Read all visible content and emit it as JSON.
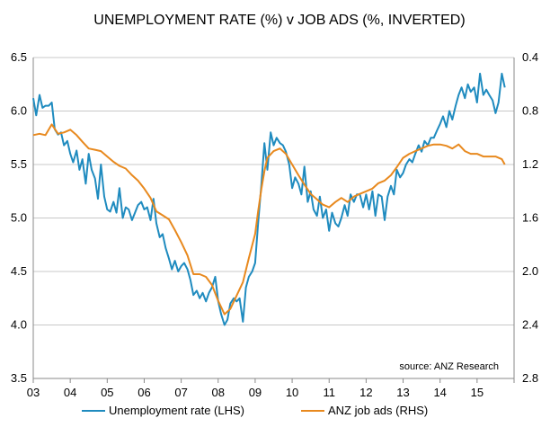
{
  "chart_data": {
    "type": "line",
    "title": "UNEMPLOYMENT RATE (%) v JOB ADS (%, INVERTED)",
    "source_note": "source: ANZ Research",
    "x_ticks": [
      "03",
      "04",
      "05",
      "06",
      "07",
      "08",
      "09",
      "10",
      "11",
      "12",
      "13",
      "14",
      "15"
    ],
    "x_range": [
      2003,
      2016
    ],
    "y_left": {
      "min": 3.5,
      "max": 6.5,
      "ticks": [
        "3.5",
        "4.0",
        "4.5",
        "5.0",
        "5.5",
        "6.0",
        "6.5"
      ]
    },
    "y_right": {
      "min": 0.4,
      "max": 2.8,
      "inverted": true,
      "ticks": [
        "0.4",
        "0.8",
        "1.2",
        "1.6",
        "2.0",
        "2.4",
        "2.8"
      ]
    },
    "grid": "horizontal",
    "legend_position": "bottom",
    "series": [
      {
        "name": "Unemployment rate (LHS)",
        "axis": "left",
        "color": "#1f8bbf",
        "points": [
          [
            2003.0,
            6.12
          ],
          [
            2003.08,
            5.96
          ],
          [
            2003.17,
            6.15
          ],
          [
            2003.25,
            6.03
          ],
          [
            2003.33,
            6.05
          ],
          [
            2003.42,
            6.05
          ],
          [
            2003.5,
            6.08
          ],
          [
            2003.58,
            5.83
          ],
          [
            2003.67,
            5.78
          ],
          [
            2003.75,
            5.8
          ],
          [
            2003.83,
            5.68
          ],
          [
            2003.92,
            5.72
          ],
          [
            2004.0,
            5.6
          ],
          [
            2004.08,
            5.52
          ],
          [
            2004.17,
            5.63
          ],
          [
            2004.25,
            5.45
          ],
          [
            2004.33,
            5.55
          ],
          [
            2004.42,
            5.32
          ],
          [
            2004.5,
            5.6
          ],
          [
            2004.58,
            5.45
          ],
          [
            2004.67,
            5.37
          ],
          [
            2004.75,
            5.18
          ],
          [
            2004.83,
            5.5
          ],
          [
            2004.92,
            5.2
          ],
          [
            2005.0,
            5.08
          ],
          [
            2005.08,
            5.06
          ],
          [
            2005.17,
            5.15
          ],
          [
            2005.25,
            5.05
          ],
          [
            2005.33,
            5.28
          ],
          [
            2005.42,
            5.0
          ],
          [
            2005.5,
            5.1
          ],
          [
            2005.58,
            5.08
          ],
          [
            2005.67,
            4.98
          ],
          [
            2005.75,
            5.05
          ],
          [
            2005.83,
            5.12
          ],
          [
            2005.92,
            5.15
          ],
          [
            2006.0,
            5.08
          ],
          [
            2006.08,
            5.1
          ],
          [
            2006.17,
            4.98
          ],
          [
            2006.25,
            5.18
          ],
          [
            2006.33,
            4.95
          ],
          [
            2006.42,
            4.82
          ],
          [
            2006.5,
            4.85
          ],
          [
            2006.58,
            4.72
          ],
          [
            2006.67,
            4.62
          ],
          [
            2006.75,
            4.52
          ],
          [
            2006.83,
            4.6
          ],
          [
            2006.92,
            4.5
          ],
          [
            2007.0,
            4.55
          ],
          [
            2007.08,
            4.58
          ],
          [
            2007.17,
            4.52
          ],
          [
            2007.25,
            4.42
          ],
          [
            2007.33,
            4.28
          ],
          [
            2007.42,
            4.32
          ],
          [
            2007.5,
            4.25
          ],
          [
            2007.58,
            4.3
          ],
          [
            2007.67,
            4.22
          ],
          [
            2007.75,
            4.3
          ],
          [
            2007.83,
            4.35
          ],
          [
            2007.92,
            4.45
          ],
          [
            2008.0,
            4.22
          ],
          [
            2008.08,
            4.1
          ],
          [
            2008.17,
            4.0
          ],
          [
            2008.25,
            4.05
          ],
          [
            2008.33,
            4.2
          ],
          [
            2008.42,
            4.25
          ],
          [
            2008.5,
            4.22
          ],
          [
            2008.58,
            4.25
          ],
          [
            2008.67,
            4.03
          ],
          [
            2008.75,
            4.35
          ],
          [
            2008.83,
            4.45
          ],
          [
            2008.92,
            4.5
          ],
          [
            2009.0,
            4.58
          ],
          [
            2009.08,
            4.95
          ],
          [
            2009.17,
            5.32
          ],
          [
            2009.25,
            5.7
          ],
          [
            2009.33,
            5.45
          ],
          [
            2009.42,
            5.8
          ],
          [
            2009.5,
            5.68
          ],
          [
            2009.58,
            5.75
          ],
          [
            2009.67,
            5.7
          ],
          [
            2009.75,
            5.68
          ],
          [
            2009.83,
            5.62
          ],
          [
            2009.92,
            5.5
          ],
          [
            2010.0,
            5.28
          ],
          [
            2010.08,
            5.38
          ],
          [
            2010.17,
            5.32
          ],
          [
            2010.25,
            5.22
          ],
          [
            2010.33,
            5.48
          ],
          [
            2010.42,
            5.15
          ],
          [
            2010.5,
            5.25
          ],
          [
            2010.58,
            5.08
          ],
          [
            2010.67,
            5.02
          ],
          [
            2010.75,
            5.2
          ],
          [
            2010.83,
            5.0
          ],
          [
            2010.92,
            5.08
          ],
          [
            2011.0,
            4.88
          ],
          [
            2011.08,
            5.05
          ],
          [
            2011.17,
            4.95
          ],
          [
            2011.25,
            4.92
          ],
          [
            2011.33,
            5.0
          ],
          [
            2011.42,
            5.12
          ],
          [
            2011.5,
            5.02
          ],
          [
            2011.58,
            5.22
          ],
          [
            2011.67,
            5.15
          ],
          [
            2011.75,
            5.22
          ],
          [
            2011.83,
            5.22
          ],
          [
            2011.92,
            5.1
          ],
          [
            2012.0,
            5.22
          ],
          [
            2012.08,
            5.08
          ],
          [
            2012.17,
            5.25
          ],
          [
            2012.25,
            5.02
          ],
          [
            2012.33,
            5.22
          ],
          [
            2012.42,
            5.2
          ],
          [
            2012.5,
            4.98
          ],
          [
            2012.58,
            5.2
          ],
          [
            2012.67,
            5.3
          ],
          [
            2012.75,
            5.22
          ],
          [
            2012.83,
            5.45
          ],
          [
            2012.92,
            5.38
          ],
          [
            2013.0,
            5.42
          ],
          [
            2013.08,
            5.5
          ],
          [
            2013.17,
            5.55
          ],
          [
            2013.25,
            5.52
          ],
          [
            2013.33,
            5.6
          ],
          [
            2013.42,
            5.68
          ],
          [
            2013.5,
            5.62
          ],
          [
            2013.58,
            5.72
          ],
          [
            2013.67,
            5.68
          ],
          [
            2013.75,
            5.75
          ],
          [
            2013.83,
            5.75
          ],
          [
            2013.92,
            5.82
          ],
          [
            2014.0,
            5.88
          ],
          [
            2014.08,
            5.95
          ],
          [
            2014.17,
            5.85
          ],
          [
            2014.25,
            6.0
          ],
          [
            2014.33,
            5.92
          ],
          [
            2014.42,
            6.05
          ],
          [
            2014.5,
            6.15
          ],
          [
            2014.58,
            6.22
          ],
          [
            2014.67,
            6.12
          ],
          [
            2014.75,
            6.25
          ],
          [
            2014.83,
            6.18
          ],
          [
            2014.92,
            6.22
          ],
          [
            2015.0,
            6.08
          ],
          [
            2015.08,
            6.35
          ],
          [
            2015.17,
            6.15
          ],
          [
            2015.25,
            6.2
          ],
          [
            2015.33,
            6.15
          ],
          [
            2015.42,
            6.1
          ],
          [
            2015.5,
            5.98
          ],
          [
            2015.58,
            6.08
          ],
          [
            2015.67,
            6.35
          ],
          [
            2015.75,
            6.22
          ]
        ]
      },
      {
        "name": "ANZ job ads (RHS)",
        "axis": "right",
        "color": "#e8891e",
        "points": [
          [
            2003.0,
            0.98
          ],
          [
            2003.17,
            0.97
          ],
          [
            2003.33,
            0.98
          ],
          [
            2003.5,
            0.9
          ],
          [
            2003.67,
            0.97
          ],
          [
            2003.83,
            0.96
          ],
          [
            2004.0,
            0.94
          ],
          [
            2004.17,
            0.98
          ],
          [
            2004.33,
            1.03
          ],
          [
            2004.5,
            1.08
          ],
          [
            2004.67,
            1.09
          ],
          [
            2004.83,
            1.1
          ],
          [
            2005.0,
            1.14
          ],
          [
            2005.17,
            1.18
          ],
          [
            2005.33,
            1.21
          ],
          [
            2005.5,
            1.23
          ],
          [
            2005.67,
            1.28
          ],
          [
            2005.83,
            1.32
          ],
          [
            2006.0,
            1.38
          ],
          [
            2006.17,
            1.45
          ],
          [
            2006.33,
            1.55
          ],
          [
            2006.5,
            1.58
          ],
          [
            2006.67,
            1.61
          ],
          [
            2006.83,
            1.69
          ],
          [
            2007.0,
            1.78
          ],
          [
            2007.17,
            1.88
          ],
          [
            2007.33,
            2.02
          ],
          [
            2007.5,
            2.02
          ],
          [
            2007.67,
            2.04
          ],
          [
            2007.83,
            2.1
          ],
          [
            2008.0,
            2.22
          ],
          [
            2008.17,
            2.32
          ],
          [
            2008.33,
            2.28
          ],
          [
            2008.5,
            2.18
          ],
          [
            2008.67,
            2.08
          ],
          [
            2008.83,
            1.9
          ],
          [
            2009.0,
            1.72
          ],
          [
            2009.08,
            1.55
          ],
          [
            2009.17,
            1.38
          ],
          [
            2009.25,
            1.25
          ],
          [
            2009.33,
            1.15
          ],
          [
            2009.5,
            1.1
          ],
          [
            2009.67,
            1.08
          ],
          [
            2009.83,
            1.12
          ],
          [
            2010.0,
            1.2
          ],
          [
            2010.17,
            1.28
          ],
          [
            2010.33,
            1.35
          ],
          [
            2010.5,
            1.42
          ],
          [
            2010.67,
            1.46
          ],
          [
            2010.83,
            1.5
          ],
          [
            2011.0,
            1.52
          ],
          [
            2011.17,
            1.48
          ],
          [
            2011.33,
            1.45
          ],
          [
            2011.5,
            1.48
          ],
          [
            2011.67,
            1.44
          ],
          [
            2011.83,
            1.42
          ],
          [
            2012.0,
            1.4
          ],
          [
            2012.17,
            1.38
          ],
          [
            2012.33,
            1.34
          ],
          [
            2012.5,
            1.32
          ],
          [
            2012.67,
            1.28
          ],
          [
            2012.83,
            1.22
          ],
          [
            2013.0,
            1.15
          ],
          [
            2013.17,
            1.12
          ],
          [
            2013.33,
            1.1
          ],
          [
            2013.5,
            1.08
          ],
          [
            2013.67,
            1.06
          ],
          [
            2013.83,
            1.05
          ],
          [
            2014.0,
            1.05
          ],
          [
            2014.17,
            1.06
          ],
          [
            2014.33,
            1.08
          ],
          [
            2014.5,
            1.05
          ],
          [
            2014.67,
            1.1
          ],
          [
            2014.83,
            1.12
          ],
          [
            2015.0,
            1.12
          ],
          [
            2015.17,
            1.14
          ],
          [
            2015.33,
            1.14
          ],
          [
            2015.5,
            1.14
          ],
          [
            2015.67,
            1.16
          ],
          [
            2015.75,
            1.2
          ]
        ]
      }
    ]
  }
}
